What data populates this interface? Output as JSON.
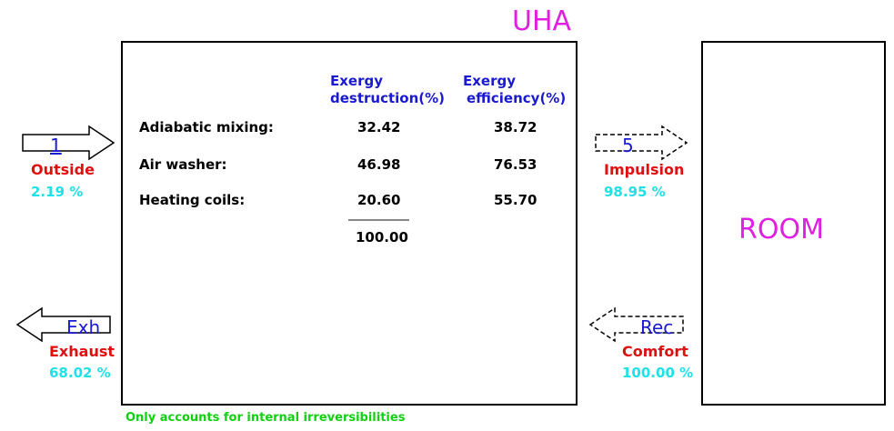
{
  "uha_title": "UHA",
  "room_title": "ROOM",
  "table": {
    "headers": {
      "destruction": [
        "Exergy",
        "destruction(%)"
      ],
      "efficiency": [
        "Exergy",
        "efficiency(%)"
      ]
    },
    "rows": [
      {
        "label": "Adiabatic mixing:",
        "destruction": "32.42",
        "efficiency": "38.72"
      },
      {
        "label": "Air washer:",
        "destruction": "46.98",
        "efficiency": "76.53"
      },
      {
        "label": "Heating coils:",
        "destruction": "20.60",
        "efficiency": "55.70"
      }
    ],
    "total": "100.00"
  },
  "streams": {
    "outside": {
      "arrow_label": "1",
      "name": "Outside",
      "percent": "2.19 %"
    },
    "exhaust": {
      "arrow_label": "Exh",
      "name": "Exhaust",
      "percent": "68.02 %"
    },
    "impulsion": {
      "arrow_label": "5",
      "name": "Impulsion",
      "percent": "98.95 %"
    },
    "comfort": {
      "arrow_label": "Rec",
      "name": "Comfort",
      "percent": "100.00 %"
    }
  },
  "footnote": "Only accounts for internal irreversibilities",
  "colors": {
    "title": "#e020e0",
    "header": "#1a1ad0",
    "stream_name": "#e01010",
    "stream_percent": "#20e0e8",
    "footnote": "#10d010"
  }
}
